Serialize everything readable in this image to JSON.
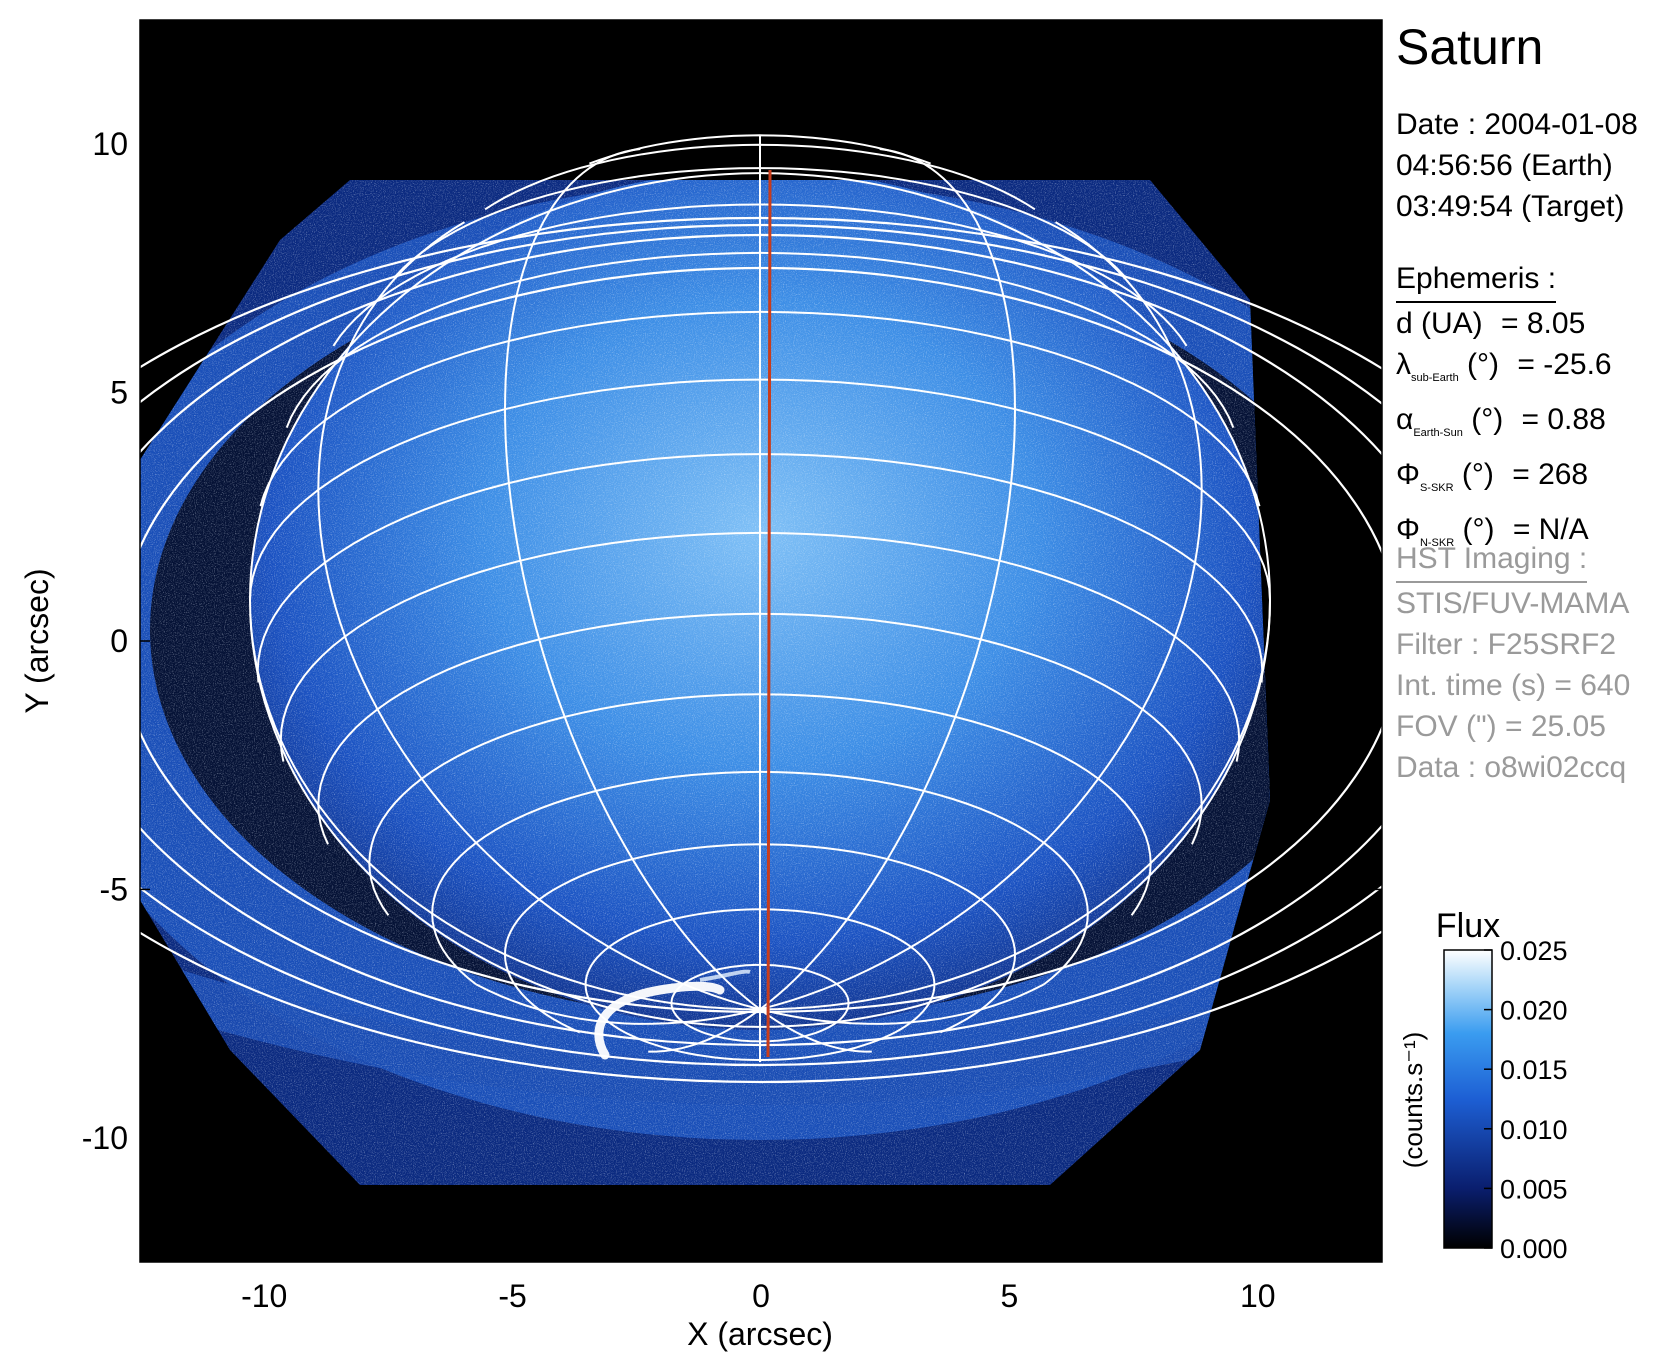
{
  "title": "Saturn",
  "observation": {
    "date_line": "Date : 2004-01-08",
    "earth_time": "04:56:56 (Earth)",
    "target_time": "03:49:54 (Target)"
  },
  "ephemeris": {
    "header": "Ephemeris :",
    "rows": [
      {
        "symbol": "d (UA)",
        "sub": "",
        "unit": "",
        "value": "= 8.05"
      },
      {
        "symbol": "λ",
        "sub": "sub-Earth",
        "unit": "(°)",
        "value": "= -25.6"
      },
      {
        "symbol": "α",
        "sub": "Earth-Sun",
        "unit": "(°)",
        "value": "= 0.88"
      },
      {
        "symbol": "Φ",
        "sub": "S-SKR",
        "unit": "(°)",
        "value": "= 268"
      },
      {
        "symbol": "Φ",
        "sub": "N-SKR",
        "unit": "(°)",
        "value": "= N/A"
      }
    ]
  },
  "hst": {
    "header": "HST Imaging :",
    "rows": [
      "STIS/FUV-MAMA",
      "Filter : F25SRF2",
      "Int. time (s) = 640",
      "FOV (\") = 25.05",
      "Data : o8wi02ccq"
    ]
  },
  "colorbar": {
    "title": "Flux",
    "label": "(counts.s⁻¹)",
    "ticks": [
      "0.025",
      "0.020",
      "0.015",
      "0.010",
      "0.005",
      "0.000"
    ],
    "range": [
      0.0,
      0.025
    ],
    "colors": [
      "#000000",
      "#0a1e6e",
      "#1d5fd4",
      "#3a9cf0",
      "#a8d6f8",
      "#ffffff"
    ]
  },
  "chart_data": {
    "type": "heatmap",
    "title": "Saturn",
    "xlabel": "X (arcsec)",
    "ylabel": "Y (arcsec)",
    "xlim": [
      -12.5,
      12.5
    ],
    "ylim": [
      -12.5,
      12.5
    ],
    "xticks": [
      -10,
      -5,
      0,
      5,
      10
    ],
    "yticks": [
      -10,
      -5,
      0,
      5,
      10
    ],
    "colors": {
      "background": "#000000",
      "disk": "#1f56c8",
      "rings": "#1a48b0",
      "grid": "#ffffff",
      "meridian": "#c83c1c",
      "aurora": "#ffffff"
    }
  }
}
